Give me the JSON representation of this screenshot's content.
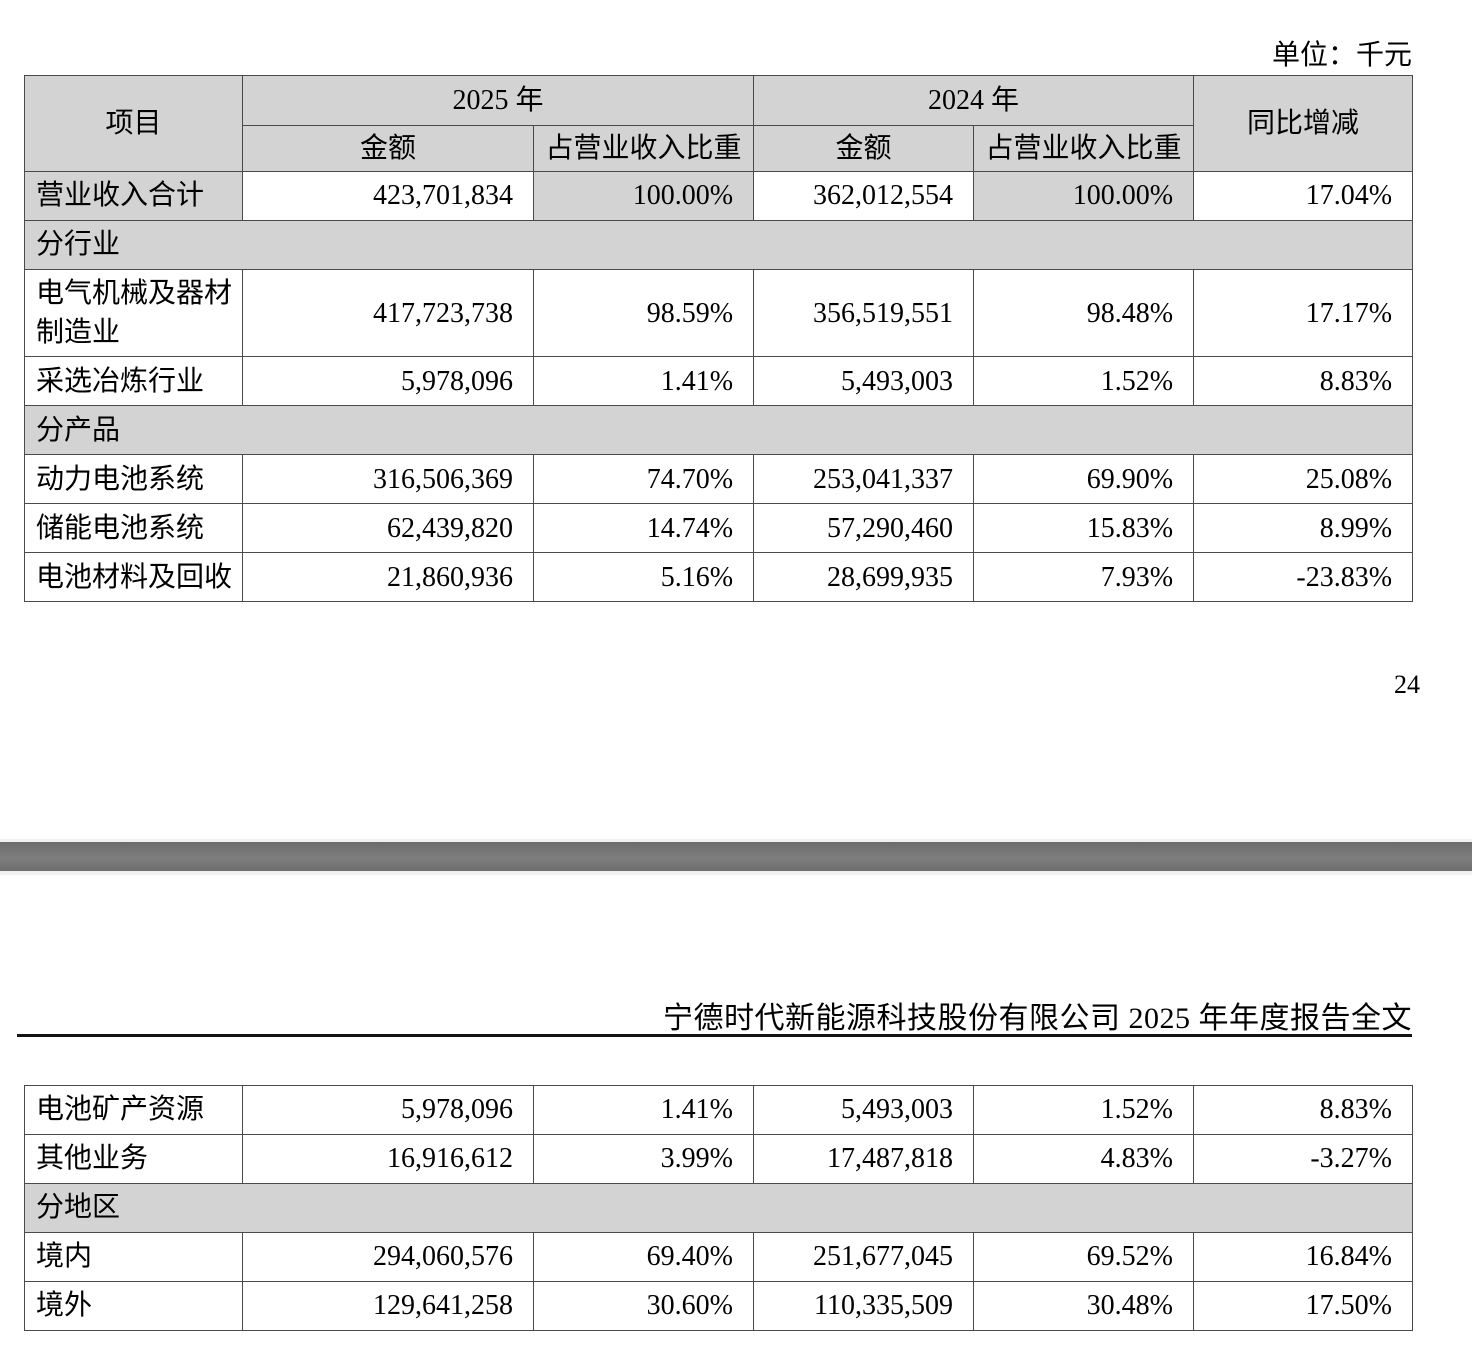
{
  "colors": {
    "cell_shade": "#d3d3d3",
    "divider_bar": "#757575",
    "table_border": "#4a4a4a"
  },
  "page1": {
    "unit_label": "单位：千元",
    "page_number": "24"
  },
  "page2": {
    "report_title": "宁德时代新能源科技股份有限公司 2025 年年度报告全文"
  },
  "table": {
    "headers": {
      "item": "项目",
      "year_2025": "2025 年",
      "year_2024": "2024 年",
      "yoy": "同比增减",
      "amount": "金额",
      "revenue_share": "占营业收入比重"
    },
    "page1_rows": [
      {
        "type": "total",
        "label": "营业收入合计",
        "amount_2025": "423,701,834",
        "share_2025": "100.00%",
        "amount_2024": "362,012,554",
        "share_2024": "100.00%",
        "yoy": "17.04%"
      },
      {
        "type": "section",
        "label": "分行业"
      },
      {
        "type": "data",
        "label": "电气机械及器材制造业",
        "amount_2025": "417,723,738",
        "share_2025": "98.59%",
        "amount_2024": "356,519,551",
        "share_2024": "98.48%",
        "yoy": "17.17%"
      },
      {
        "type": "data",
        "label": "采选冶炼行业",
        "amount_2025": "5,978,096",
        "share_2025": "1.41%",
        "amount_2024": "5,493,003",
        "share_2024": "1.52%",
        "yoy": "8.83%"
      },
      {
        "type": "section",
        "label": "分产品"
      },
      {
        "type": "data",
        "label": "动力电池系统",
        "amount_2025": "316,506,369",
        "share_2025": "74.70%",
        "amount_2024": "253,041,337",
        "share_2024": "69.90%",
        "yoy": "25.08%"
      },
      {
        "type": "data",
        "label": "储能电池系统",
        "amount_2025": "62,439,820",
        "share_2025": "14.74%",
        "amount_2024": "57,290,460",
        "share_2024": "15.83%",
        "yoy": "8.99%"
      },
      {
        "type": "data",
        "label": "电池材料及回收",
        "amount_2025": "21,860,936",
        "share_2025": "5.16%",
        "amount_2024": "28,699,935",
        "share_2024": "7.93%",
        "yoy": "-23.83%"
      }
    ],
    "page2_rows": [
      {
        "type": "data",
        "label": "电池矿产资源",
        "amount_2025": "5,978,096",
        "share_2025": "1.41%",
        "amount_2024": "5,493,003",
        "share_2024": "1.52%",
        "yoy": "8.83%"
      },
      {
        "type": "data",
        "label": "其他业务",
        "amount_2025": "16,916,612",
        "share_2025": "3.99%",
        "amount_2024": "17,487,818",
        "share_2024": "4.83%",
        "yoy": "-3.27%"
      },
      {
        "type": "section",
        "label": "分地区"
      },
      {
        "type": "data",
        "label": "境内",
        "amount_2025": "294,060,576",
        "share_2025": "69.40%",
        "amount_2024": "251,677,045",
        "share_2024": "69.52%",
        "yoy": "16.84%"
      },
      {
        "type": "data",
        "label": "境外",
        "amount_2025": "129,641,258",
        "share_2025": "30.60%",
        "amount_2024": "110,335,509",
        "share_2024": "30.48%",
        "yoy": "17.50%"
      }
    ]
  }
}
